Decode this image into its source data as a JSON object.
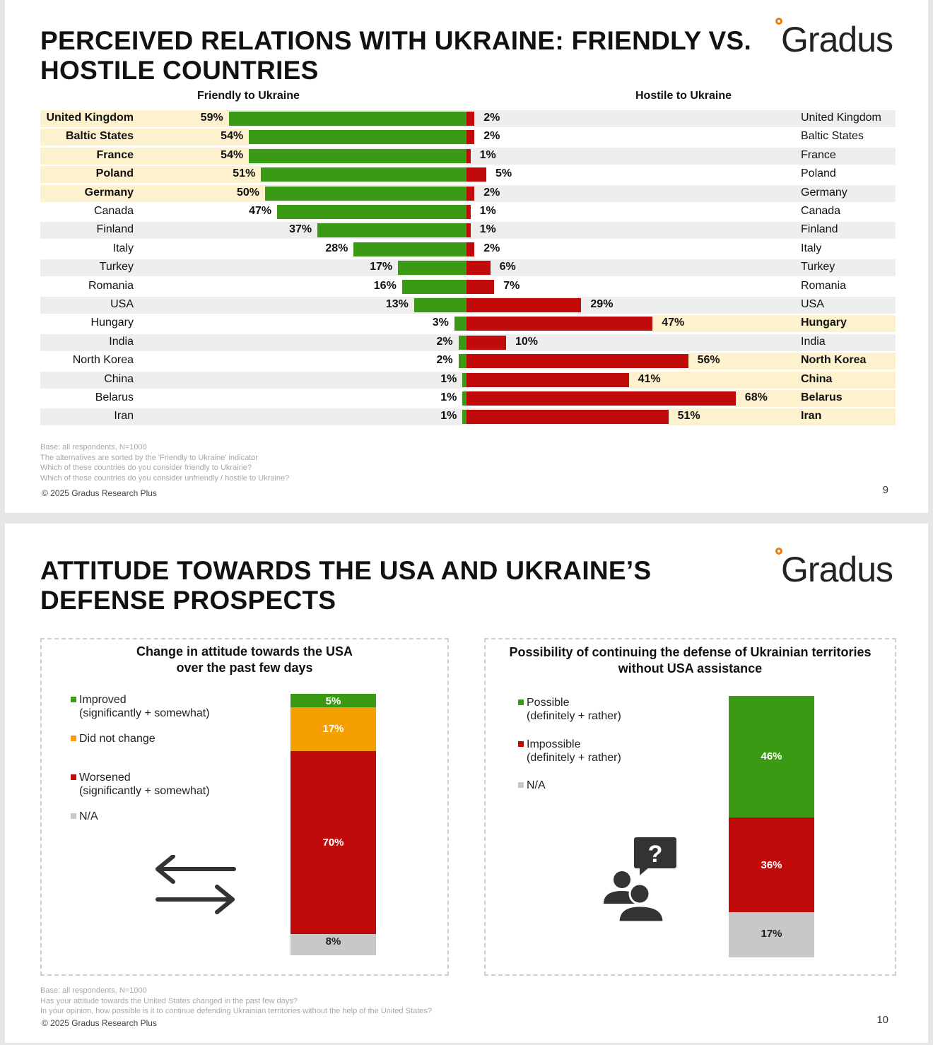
{
  "slide1": {
    "title_line1": "PERCEIVED RELATIONS WITH UKRAINE: FRIENDLY VS.",
    "title_line2": "HOSTILE COUNTRIES",
    "logo": "Gradus",
    "friendly_header": "Friendly to Ukraine",
    "hostile_header": "Hostile to Ukraine",
    "footnotes": [
      "Base: all respondents, N=1000",
      "The alternatives are sorted by the 'Friendly to Ukraine' indicator",
      "Which of these countries do you consider friendly to Ukraine?",
      "Which of these countries do you consider unfriendly / hostile to Ukraine?"
    ],
    "copyright": "© 2025 Gradus Research Plus",
    "page_number": "9"
  },
  "slide2": {
    "title_line1": "ATTITUDE TOWARDS THE USA AND UKRAINE’S",
    "title_line2": "DEFENSE PROSPECTS",
    "logo": "Gradus",
    "footnotes": [
      "Base: all respondents, N=1000",
      "Has your attitude towards the United States changed in the past few days?",
      "In your opinion, how possible is it to continue defending Ukrainian territories without the help of the United States?"
    ],
    "copyright": "© 2025 Gradus Research Plus",
    "page_number": "10"
  },
  "colors": {
    "green": "#3a9a14",
    "red": "#c10b0b",
    "orange": "#f59f00",
    "gray": "#c8c8c8",
    "highlight": "#fdf2cd",
    "logo_dot": "#f07a12"
  },
  "icons": {
    "arrows": "left-right-arrows-icon",
    "people": "people-question-icon"
  },
  "chart_data": [
    {
      "type": "bar",
      "orientation": "diverging-horizontal",
      "title": "PERCEIVED RELATIONS WITH UKRAINE: FRIENDLY VS. HOSTILE COUNTRIES",
      "categories": [
        "United Kingdom",
        "Baltic States",
        "France",
        "Poland",
        "Germany",
        "Canada",
        "Finland",
        "Italy",
        "Turkey",
        "Romania",
        "USA",
        "Hungary",
        "India",
        "North Korea",
        "China",
        "Belarus",
        "Iran"
      ],
      "series": [
        {
          "name": "Friendly to Ukraine",
          "values": [
            59,
            54,
            54,
            51,
            50,
            47,
            37,
            28,
            17,
            16,
            13,
            3,
            2,
            2,
            1,
            1,
            1
          ]
        },
        {
          "name": "Hostile to Ukraine",
          "values": [
            2,
            2,
            1,
            5,
            2,
            1,
            1,
            2,
            6,
            7,
            29,
            47,
            10,
            56,
            41,
            68,
            51
          ]
        }
      ],
      "highlight_friendly": [
        "United Kingdom",
        "Baltic States",
        "France",
        "Poland",
        "Germany"
      ],
      "highlight_hostile": [
        "Hungary",
        "North Korea",
        "China",
        "Belarus",
        "Iran"
      ],
      "unit": "%"
    },
    {
      "type": "bar",
      "orientation": "stacked-vertical",
      "title": "Change in attitude towards the USA over the past few days",
      "title_lines": [
        "Change in attitude towards the USA",
        "over the past few days"
      ],
      "series": [
        {
          "name": "Improved",
          "sub": "(significantly + somewhat)",
          "value": 5,
          "color": "#3a9a14"
        },
        {
          "name": "Did not change",
          "sub": "",
          "value": 17,
          "color": "#f59f00"
        },
        {
          "name": "Worsened",
          "sub": "(significantly + somewhat)",
          "value": 70,
          "color": "#c10b0b"
        },
        {
          "name": "N/A",
          "sub": "",
          "value": 8,
          "color": "#c8c8c8"
        }
      ],
      "unit": "%"
    },
    {
      "type": "bar",
      "orientation": "stacked-vertical",
      "title": "Possibility of continuing the defense of Ukrainian territories without USA assistance",
      "title_lines": [
        "Possibility of continuing the defense of Ukrainian territories",
        "without USA assistance"
      ],
      "series": [
        {
          "name": "Possible",
          "sub": "(definitely + rather)",
          "value": 46,
          "color": "#3a9a14"
        },
        {
          "name": "Impossible",
          "sub": "(definitely + rather)",
          "value": 36,
          "color": "#c10b0b"
        },
        {
          "name": "N/A",
          "sub": "",
          "value": 17,
          "color": "#c8c8c8"
        }
      ],
      "unit": "%"
    }
  ]
}
